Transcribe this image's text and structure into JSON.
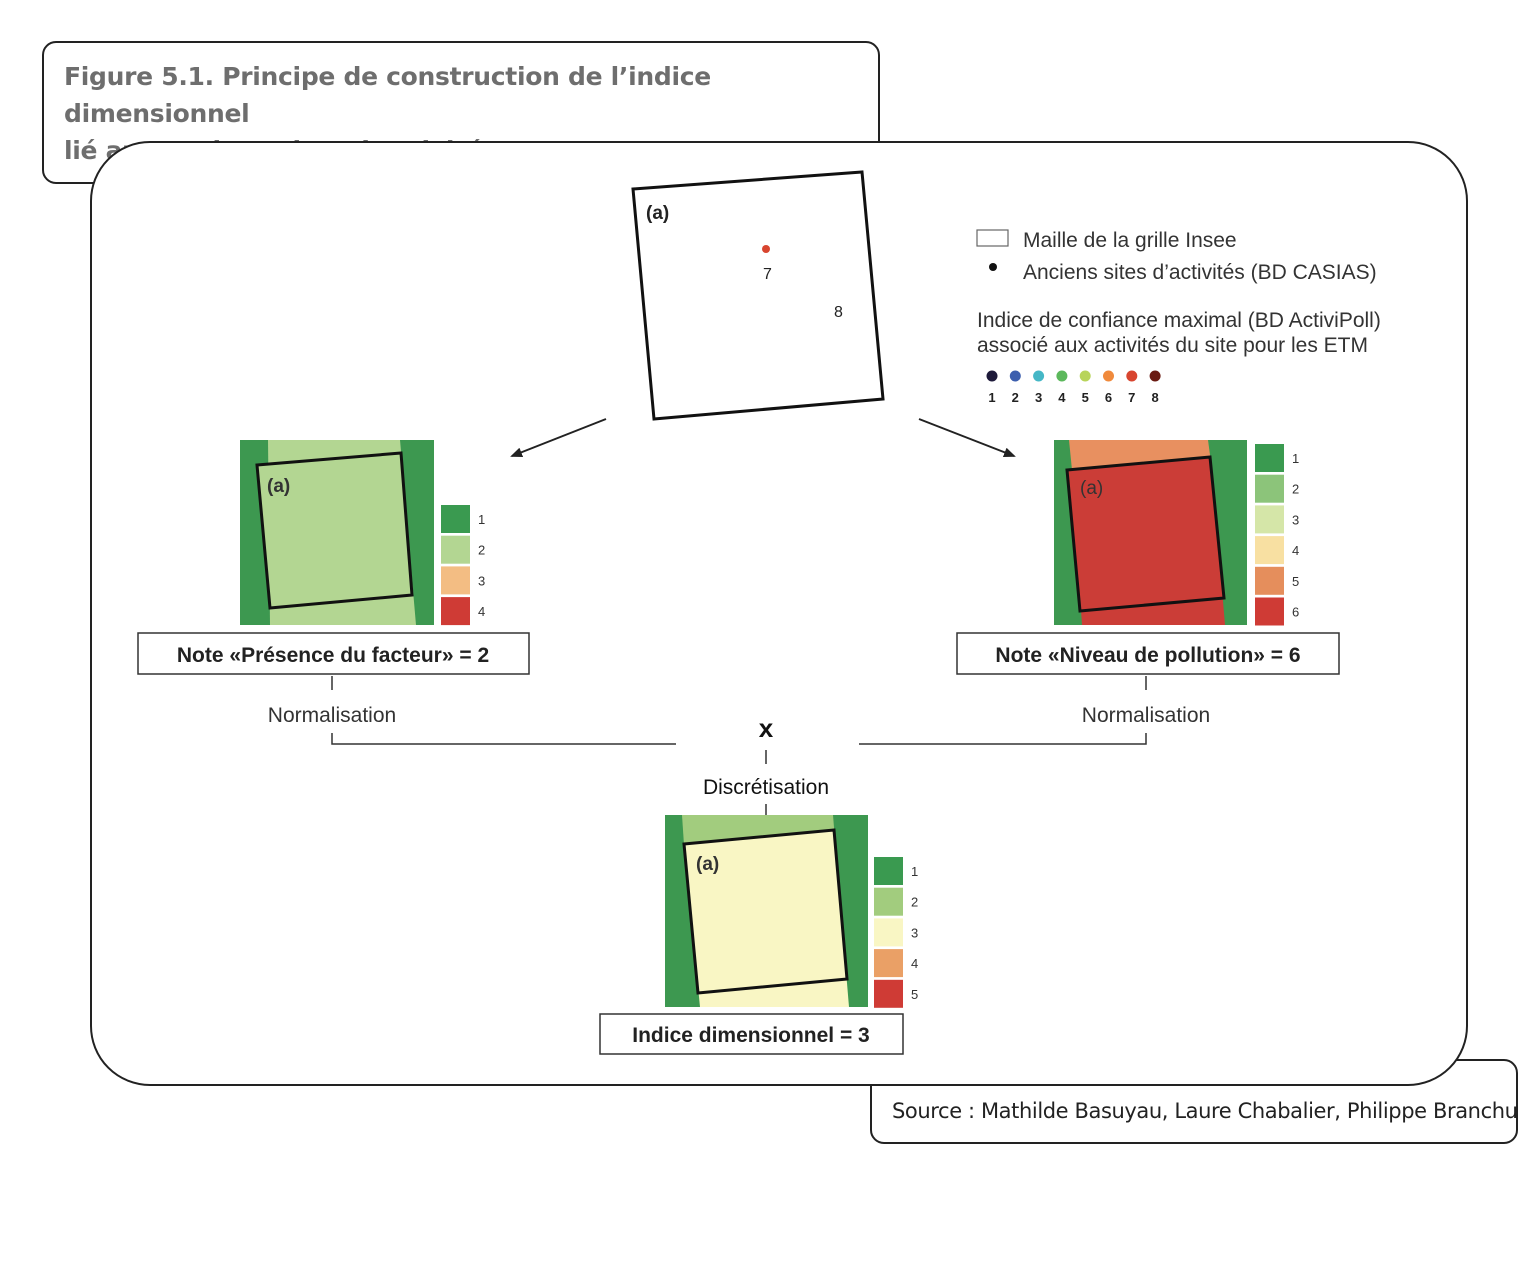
{
  "figure": {
    "title_line1": "Figure 5.1. Principe de construction de l’indice dimensionnel",
    "title_line2": "lié aux anciens sites d’activité"
  },
  "source": "Source : Mathilde Basuyau, Laure Chabalier, Philippe Branchu",
  "top_square": {
    "label": "(a)",
    "point7": "7",
    "point8": "8"
  },
  "legend": {
    "cell_label": "Maille de la grille Insee",
    "sites_label": "Anciens sites d’activités (BD CASIAS)",
    "index_title_line1": "Indice de confiance maximal (BD ActiviPoll)",
    "index_title_line2": "associé aux activités du site pour les ETM",
    "levels": [
      {
        "label": "1",
        "color": "#1e1a3a"
      },
      {
        "label": "2",
        "color": "#3d5fae"
      },
      {
        "label": "3",
        "color": "#45b7c6"
      },
      {
        "label": "4",
        "color": "#5cb85c"
      },
      {
        "label": "5",
        "color": "#b8d45a"
      },
      {
        "label": "6",
        "color": "#f08a3c"
      },
      {
        "label": "7",
        "color": "#d8452f"
      },
      {
        "label": "8",
        "color": "#6a1a12"
      }
    ]
  },
  "left_panel": {
    "label": "(a)",
    "note_prefix": "Note «",
    "note_name": "Présence du facteur",
    "note_suffix": "» = 2",
    "scale": [
      {
        "label": "1",
        "color": "#3a9a50"
      },
      {
        "label": "2",
        "color": "#b3d692"
      },
      {
        "label": "3",
        "color": "#f3bd83"
      },
      {
        "label": "4",
        "color": "#cf3b35"
      }
    ],
    "normalisation": "Normalisation"
  },
  "right_panel": {
    "label": "(a)",
    "note_prefix": "Note «",
    "note_name": "Niveau de pollution",
    "note_suffix": "» = 6",
    "scale": [
      {
        "label": "1",
        "color": "#3a9a50"
      },
      {
        "label": "2",
        "color": "#8cc47a"
      },
      {
        "label": "3",
        "color": "#d5e6a8"
      },
      {
        "label": "4",
        "color": "#f8e0a2"
      },
      {
        "label": "5",
        "color": "#e58e5c"
      },
      {
        "label": "6",
        "color": "#cf3b35"
      }
    ],
    "normalisation": "Normalisation"
  },
  "bottom_panel": {
    "label": "(a)",
    "operator": "x",
    "discretisation": "Discrétisation",
    "result": "Indice dimensionnel = 3",
    "scale": [
      {
        "label": "1",
        "color": "#3a9a50"
      },
      {
        "label": "2",
        "color": "#a2cc7e"
      },
      {
        "label": "3",
        "color": "#f9f6c4"
      },
      {
        "label": "4",
        "color": "#eaa066"
      },
      {
        "label": "5",
        "color": "#cf3b35"
      }
    ]
  },
  "colors": {
    "map_green": "#3d9850",
    "left_fill": "#b3d692",
    "right_fill": "#cb3d37",
    "right_top": "#e89060",
    "bottom_fill": "#f9f6c4",
    "bottom_top": "#a2cc7e",
    "point_red": "#d8452f"
  }
}
